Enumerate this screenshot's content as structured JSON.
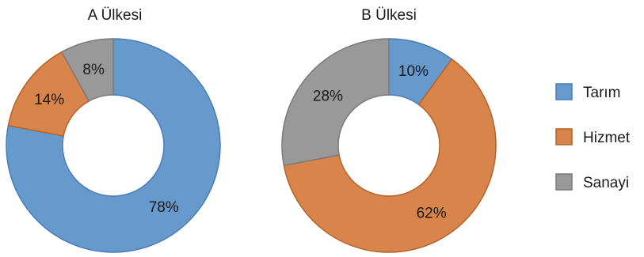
{
  "chart_data": {
    "type": "pie",
    "variant": "donut",
    "legend_position": "right",
    "categories": [
      "Tarım",
      "Hizmet",
      "Sanayi"
    ],
    "colors": {
      "Tarım": "#6699CC",
      "Hizmet": "#D9844B",
      "Sanayi": "#999999"
    },
    "stroke_colors": {
      "Tarım": "#4A7DB5",
      "Hizmet": "#B3642A",
      "Sanayi": "#7A7A7A"
    },
    "charts": [
      {
        "title": "A Ülkesi",
        "slices": [
          {
            "name": "Tarım",
            "value": 78,
            "label": "78%"
          },
          {
            "name": "Hizmet",
            "value": 14,
            "label": "14%"
          },
          {
            "name": "Sanayi",
            "value": 8,
            "label": "8%"
          }
        ]
      },
      {
        "title": "B Ülkesi",
        "slices": [
          {
            "name": "Tarım",
            "value": 10,
            "label": "10%"
          },
          {
            "name": "Hizmet",
            "value": 62,
            "label": "62%"
          },
          {
            "name": "Sanayi",
            "value": 28,
            "label": "28%"
          }
        ]
      }
    ],
    "legend": [
      "Tarım",
      "Hizmet",
      "Sanayi"
    ]
  }
}
